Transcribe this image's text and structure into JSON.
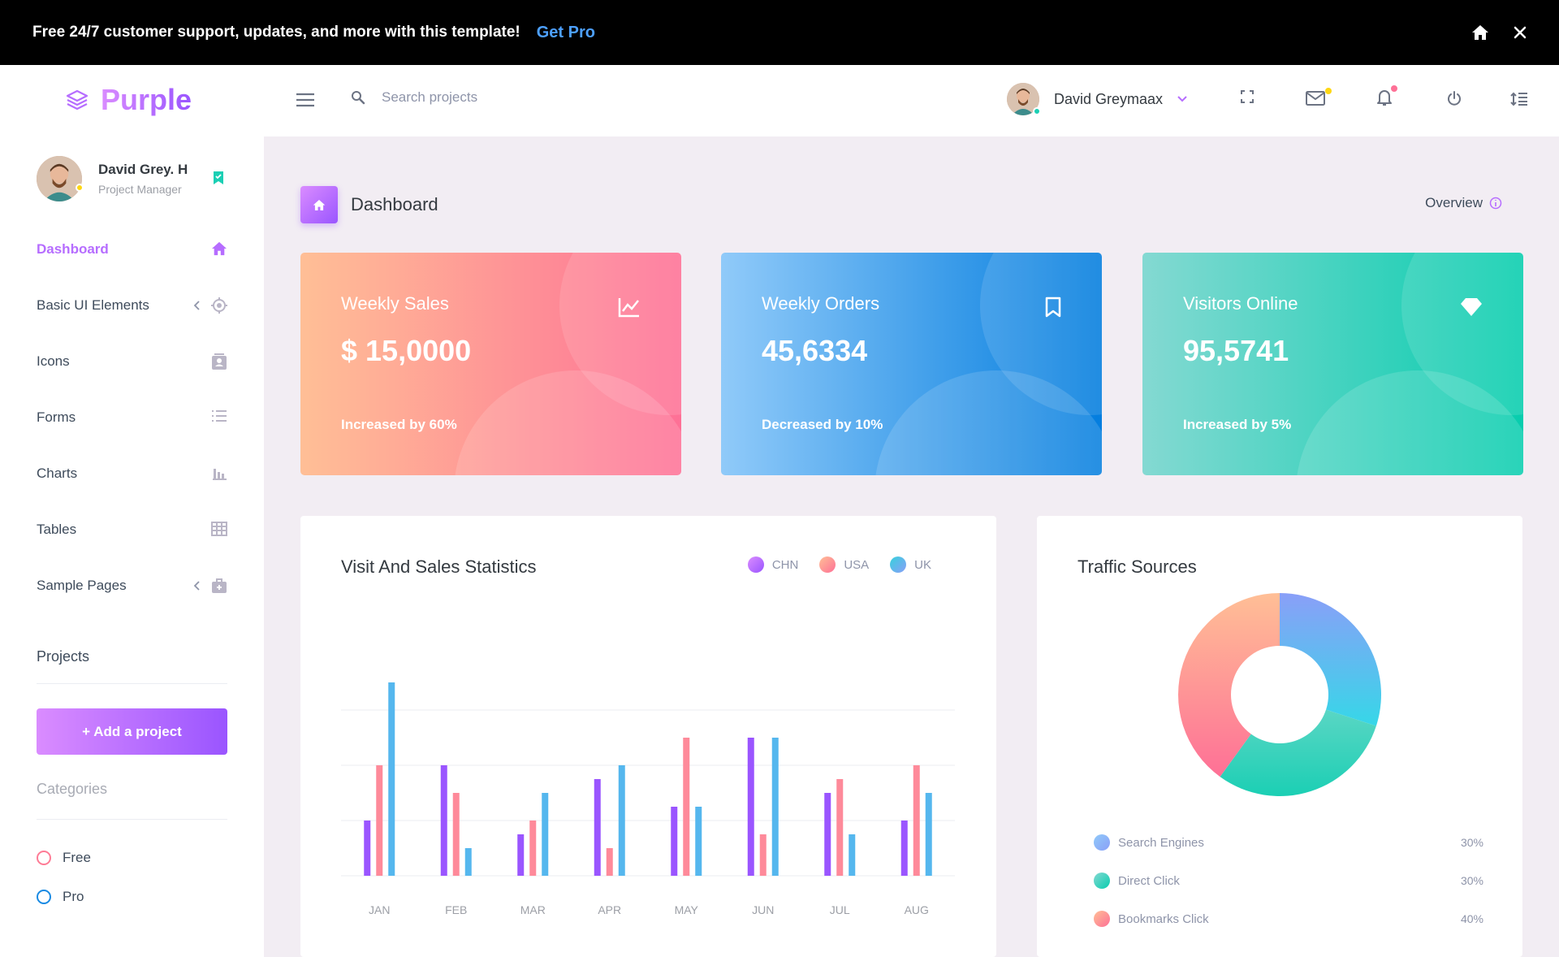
{
  "promo": {
    "text": "Free 24/7 customer support, updates, and more with this template!",
    "link": "Get Pro"
  },
  "brand": {
    "name": "Purple"
  },
  "search": {
    "placeholder": "Search projects"
  },
  "navbar": {
    "user_name": "David Greymaax"
  },
  "profile": {
    "name": "David Grey. H",
    "role": "Project Manager"
  },
  "sidebar": {
    "items": [
      {
        "label": "Dashboard",
        "icon": "home-icon"
      },
      {
        "label": "Basic UI Elements",
        "icon": "crosshairs-icon"
      },
      {
        "label": "Icons",
        "icon": "contacts-icon"
      },
      {
        "label": "Forms",
        "icon": "format-list-icon"
      },
      {
        "label": "Charts",
        "icon": "chart-bar-icon"
      },
      {
        "label": "Tables",
        "icon": "table-icon"
      },
      {
        "label": "Sample Pages",
        "icon": "medical-bag-icon"
      }
    ],
    "projects_title": "Projects",
    "add_project": "+ Add a project",
    "categories_title": "Categories",
    "categories": [
      {
        "label": "Free",
        "color": "#fe7c96"
      },
      {
        "label": "Pro",
        "color": "#198ae3"
      }
    ]
  },
  "page": {
    "title": "Dashboard",
    "overview": "Overview"
  },
  "cards": [
    {
      "title": "Weekly Sales",
      "value": "$ 15,0000",
      "footer": "Increased by 60%",
      "icon": "chart-line-icon"
    },
    {
      "title": "Weekly Orders",
      "value": "45,6334",
      "footer": "Decreased by 10%",
      "icon": "bookmark-icon"
    },
    {
      "title": "Visitors Online",
      "value": "95,5741",
      "footer": "Increased by 5%",
      "icon": "diamond-icon"
    }
  ],
  "visit_chart": {
    "title": "Visit And Sales Statistics",
    "legend": [
      "CHN",
      "USA",
      "UK"
    ]
  },
  "traffic": {
    "title": "Traffic Sources",
    "rows": [
      {
        "label": "Search Engines",
        "value": "30%"
      },
      {
        "label": "Direct Click",
        "value": "30%"
      },
      {
        "label": "Bookmarks Click",
        "value": "40%"
      }
    ]
  },
  "chart_data": [
    {
      "type": "bar",
      "title": "Visit And Sales Statistics",
      "categories": [
        "JAN",
        "FEB",
        "MAR",
        "APR",
        "MAY",
        "JUN",
        "JUL",
        "AUG"
      ],
      "series": [
        {
          "name": "CHN",
          "values": [
            20,
            40,
            15,
            35,
            25,
            50,
            30,
            20
          ],
          "color": "#9a55ff"
        },
        {
          "name": "USA",
          "values": [
            40,
            30,
            20,
            10,
            50,
            15,
            35,
            40
          ],
          "color": "#fe7096"
        },
        {
          "name": "UK",
          "values": [
            70,
            10,
            30,
            40,
            25,
            50,
            15,
            30
          ],
          "color": "#47b5ed"
        }
      ],
      "ylim": [
        0,
        70
      ],
      "grid": true,
      "legend": "top-right"
    },
    {
      "type": "pie",
      "title": "Traffic Sources",
      "labels": [
        "Search Engines",
        "Direct Click",
        "Bookmarks Click"
      ],
      "values": [
        30,
        30,
        40
      ],
      "colors": [
        "#47b5ed",
        "#1bcfb4",
        "#fe7096"
      ]
    }
  ]
}
